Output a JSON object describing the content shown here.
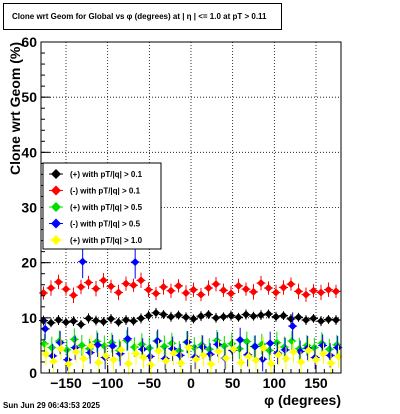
{
  "chart_data": {
    "type": "scatter",
    "title": "Clone wrt Geom for Global vs φ (degrees) at |  η  | <= 1.0 at pT > 0.11",
    "xlabel": "φ (degrees)",
    "ylabel": "Clone wrt Geom (%)",
    "xlim": [
      -180,
      180
    ],
    "ylim": [
      0,
      60
    ],
    "xticks": [
      -150,
      -100,
      -50,
      0,
      50,
      100,
      150
    ],
    "xtick_labels": [
      "−150",
      "−100",
      "−50",
      "0",
      "50",
      "100",
      "150"
    ],
    "yticks": [
      0,
      10,
      20,
      30,
      40,
      50,
      60
    ],
    "ytick_labels": [
      "0",
      "10",
      "20",
      "30",
      "40",
      "50",
      "60"
    ],
    "grid": true,
    "legend_position": "left",
    "series": [
      {
        "name": "(+) with pT/|q| > 0.1",
        "color": "#000000",
        "marker": "diamond",
        "x": [
          -177,
          -168,
          -159,
          -150,
          -141,
          -132,
          -123,
          -114,
          -105,
          -96,
          -87,
          -78,
          -69,
          -60,
          -51,
          -42,
          -33,
          -24,
          -15,
          -6,
          3,
          12,
          21,
          30,
          39,
          48,
          57,
          66,
          75,
          84,
          93,
          102,
          111,
          120,
          129,
          138,
          147,
          156,
          165,
          174
        ],
        "y": [
          9.5,
          9.1,
          9.6,
          9.2,
          9.4,
          8.8,
          9.9,
          9.5,
          9.3,
          9.8,
          9.2,
          9.6,
          9.4,
          9.9,
          10.4,
          10.9,
          10.6,
          10.2,
          10.5,
          10.1,
          9.8,
          10.3,
          10.6,
          10.0,
          10.2,
          10.4,
          10.1,
          10.6,
          10.3,
          10.5,
          10.7,
          10.2,
          10.4,
          9.8,
          10.1,
          9.6,
          9.9,
          9.4,
          9.7,
          9.6
        ],
        "err": [
          0.9,
          0.8,
          0.9,
          0.8,
          0.9,
          0.8,
          0.9,
          0.9,
          0.8,
          0.9,
          0.8,
          0.9,
          0.8,
          0.9,
          0.9,
          0.9,
          0.8,
          0.9,
          0.8,
          0.9,
          0.8,
          0.9,
          0.8,
          0.9,
          0.8,
          0.9,
          0.8,
          0.9,
          0.8,
          0.9,
          0.8,
          0.9,
          0.8,
          0.9,
          0.8,
          0.9,
          0.8,
          0.9,
          0.8,
          0.9
        ]
      },
      {
        "name": "(-) with pT/|q| > 0.1",
        "color": "#ff0000",
        "marker": "diamond",
        "x": [
          -177,
          -168,
          -159,
          -150,
          -141,
          -132,
          -123,
          -114,
          -105,
          -96,
          -87,
          -78,
          -69,
          -60,
          -51,
          -42,
          -33,
          -24,
          -15,
          -6,
          3,
          12,
          21,
          30,
          39,
          48,
          57,
          66,
          75,
          84,
          93,
          102,
          111,
          120,
          129,
          138,
          147,
          156,
          165,
          174
        ],
        "y": [
          14.5,
          15.4,
          16.5,
          15.2,
          14.1,
          15.6,
          16.4,
          15.3,
          16.8,
          15.7,
          14.6,
          16.2,
          15.9,
          16.8,
          15.1,
          14.4,
          15.6,
          14.9,
          15.8,
          14.5,
          15.1,
          14.2,
          15.4,
          16.1,
          15.0,
          14.4,
          15.8,
          15.2,
          14.7,
          16.3,
          15.4,
          14.6,
          15.5,
          16.1,
          14.8,
          14.2,
          14.9,
          14.6,
          15.1,
          14.8
        ],
        "err": [
          1.2,
          1.4,
          1.3,
          1.2,
          1.4,
          1.3,
          1.2,
          1.4,
          1.3,
          1.2,
          1.4,
          1.3,
          1.2,
          1.4,
          1.3,
          1.2,
          1.4,
          1.3,
          1.2,
          1.4,
          1.3,
          1.2,
          1.4,
          1.3,
          1.2,
          1.4,
          1.3,
          1.2,
          1.4,
          1.3,
          1.2,
          1.4,
          1.3,
          1.2,
          1.4,
          1.3,
          1.2,
          1.4,
          1.3,
          1.2
        ]
      },
      {
        "name": "(+) with pT/|q| > 0.5",
        "color": "#00dd00",
        "marker": "diamond",
        "x": [
          -176,
          -167,
          -158,
          -149,
          -140,
          -131,
          -122,
          -113,
          -104,
          -95,
          -86,
          -77,
          -68,
          -59,
          -50,
          -41,
          -32,
          -23,
          -14,
          -5,
          4,
          13,
          22,
          31,
          40,
          49,
          58,
          67,
          76,
          85,
          94,
          103,
          112,
          121,
          130,
          139,
          148,
          157,
          166,
          175
        ],
        "y": [
          5.3,
          4.6,
          5.8,
          4.2,
          6.1,
          5.0,
          4.4,
          5.7,
          4.9,
          5.5,
          4.1,
          5.9,
          4.7,
          5.2,
          4.5,
          5.8,
          4.8,
          5.4,
          4.0,
          5.6,
          4.6,
          5.1,
          4.3,
          5.9,
          4.9,
          5.3,
          4.4,
          5.7,
          4.8,
          5.2,
          4.1,
          5.5,
          4.7,
          5.8,
          4.4,
          5.0,
          4.6,
          5.4,
          4.3,
          5.1
        ],
        "err": [
          1.8,
          2.0,
          1.9,
          1.8,
          2.0,
          1.9,
          1.8,
          2.0,
          1.9,
          1.8,
          2.0,
          1.9,
          1.8,
          2.0,
          1.9,
          1.8,
          2.0,
          1.9,
          1.8,
          2.0,
          1.9,
          1.8,
          2.0,
          1.9,
          1.8,
          2.0,
          1.9,
          1.8,
          2.0,
          1.9,
          1.8,
          2.0,
          1.9,
          1.8,
          2.0,
          1.9,
          1.8,
          2.0,
          1.9,
          1.8
        ]
      },
      {
        "name": "(-) with pT/|q| > 0.5",
        "color": "#0000ff",
        "marker": "diamond",
        "x": [
          -175,
          -166,
          -157,
          -148,
          -139,
          -130,
          -121,
          -112,
          -103,
          -94,
          -85,
          -76,
          -67,
          -58,
          -49,
          -40,
          -31,
          -22,
          -13,
          -4,
          5,
          14,
          23,
          32,
          41,
          50,
          59,
          68,
          77,
          86,
          95,
          104,
          113,
          122,
          131,
          140,
          149,
          158,
          167,
          176
        ],
        "y": [
          8.0,
          3.1,
          5.5,
          2.4,
          4.6,
          20.2,
          3.7,
          5.1,
          2.8,
          4.9,
          3.5,
          6.2,
          20.1,
          4.3,
          3.0,
          5.8,
          2.6,
          4.4,
          3.2,
          5.6,
          2.9,
          4.7,
          3.4,
          5.2,
          2.7,
          4.1,
          6.0,
          3.3,
          4.8,
          2.5,
          5.4,
          3.6,
          4.2,
          8.5,
          3.9,
          4.5,
          2.8,
          5.0,
          3.2,
          4.6
        ],
        "err": [
          2.0,
          2.2,
          2.1,
          2.0,
          2.2,
          3.0,
          2.0,
          2.2,
          2.1,
          2.0,
          2.2,
          2.1,
          3.0,
          2.0,
          2.2,
          2.1,
          2.0,
          2.2,
          2.1,
          2.0,
          2.2,
          2.1,
          2.0,
          2.2,
          2.1,
          2.0,
          2.2,
          2.1,
          2.0,
          2.2,
          2.1,
          2.0,
          2.2,
          2.5,
          2.0,
          2.2,
          2.1,
          2.0,
          2.2,
          2.1
        ]
      },
      {
        "name": "(+) with pT/|q| > 1.0",
        "color": "#ffff00",
        "marker": "diamond",
        "x": [
          -174,
          -165,
          -156,
          -147,
          -138,
          -129,
          -120,
          -111,
          -102,
          -93,
          -84,
          -75,
          -66,
          -57,
          -48,
          -39,
          -30,
          -21,
          -12,
          -3,
          6,
          15,
          24,
          33,
          42,
          51,
          60,
          69,
          78,
          87,
          96,
          105,
          114,
          123,
          132,
          141,
          150,
          159,
          168,
          177
        ],
        "y": [
          3.4,
          2.1,
          4.4,
          1.6,
          3.8,
          2.6,
          4.9,
          1.9,
          3.1,
          2.4,
          4.2,
          1.7,
          3.5,
          2.8,
          1.5,
          4.0,
          2.2,
          3.6,
          1.8,
          4.6,
          2.5,
          3.2,
          1.6,
          3.9,
          2.7,
          4.3,
          1.9,
          3.0,
          2.3,
          4.5,
          1.7,
          3.3,
          2.6,
          3.8,
          2.0,
          4.1,
          2.4,
          3.5,
          1.8,
          3.0
        ],
        "err": [
          2.0,
          1.9,
          2.1,
          2.0,
          1.9,
          2.1,
          2.0,
          1.9,
          2.1,
          2.0,
          1.9,
          2.1,
          2.0,
          1.9,
          2.1,
          2.0,
          1.9,
          2.1,
          2.0,
          1.9,
          2.1,
          2.0,
          1.9,
          2.1,
          2.0,
          1.9,
          2.1,
          2.0,
          1.9,
          2.1,
          2.0,
          1.9,
          2.1,
          2.0,
          1.9,
          2.1,
          2.0,
          1.9,
          2.1,
          2.0
        ]
      }
    ]
  },
  "footer": {
    "timestamp": "Sun Jun 29 06:43:53 2025"
  }
}
